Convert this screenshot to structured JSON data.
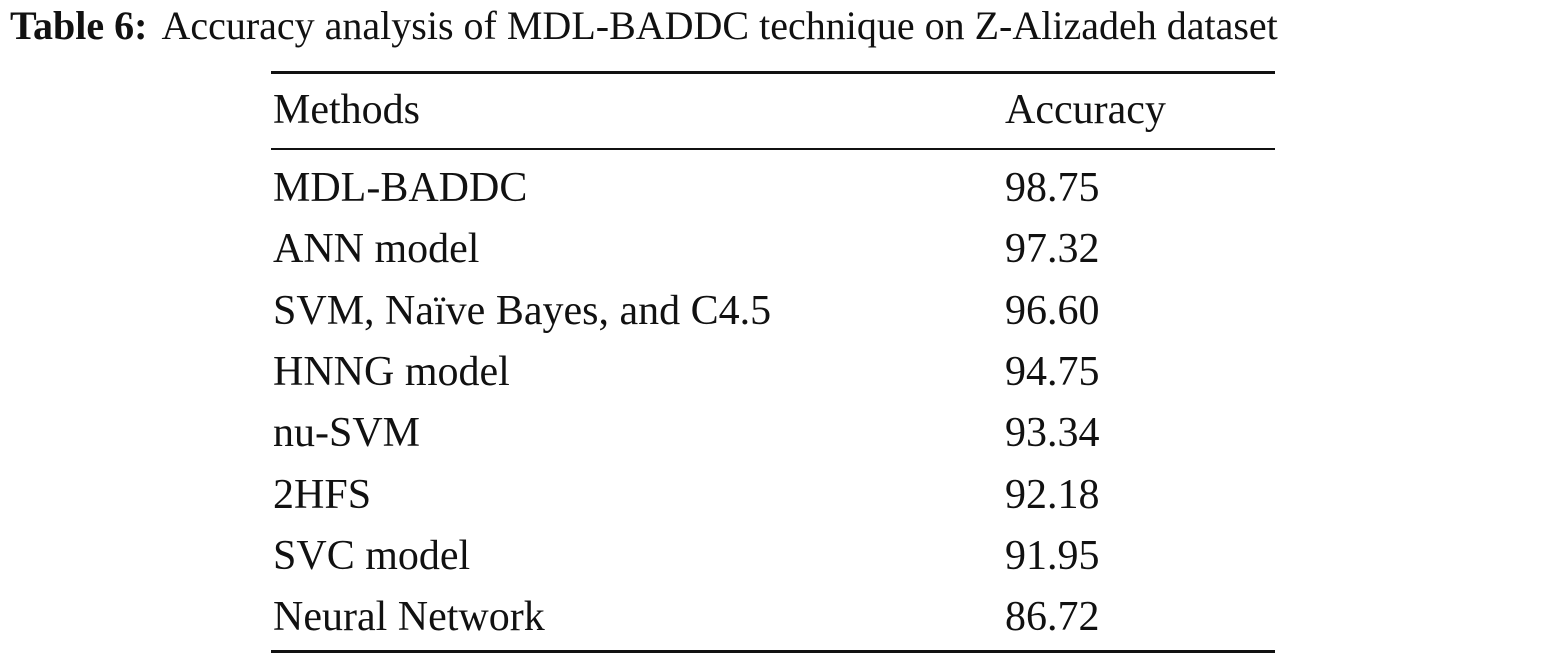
{
  "caption": {
    "label": "Table 6:",
    "text": "Accuracy analysis of MDL-BADDC technique on Z-Alizadeh dataset"
  },
  "table": {
    "header": [
      "Methods",
      "Accuracy"
    ],
    "rows": [
      [
        "MDL-BADDC",
        "98.75"
      ],
      [
        "ANN model",
        "97.32"
      ],
      [
        "SVM, Naïve Bayes, and C4.5",
        "96.60"
      ],
      [
        "HNNG model",
        "94.75"
      ],
      [
        "nu-SVM",
        "93.34"
      ],
      [
        "2HFS",
        "92.18"
      ],
      [
        "SVC model",
        "91.95"
      ],
      [
        "Neural Network",
        "86.72"
      ]
    ]
  }
}
